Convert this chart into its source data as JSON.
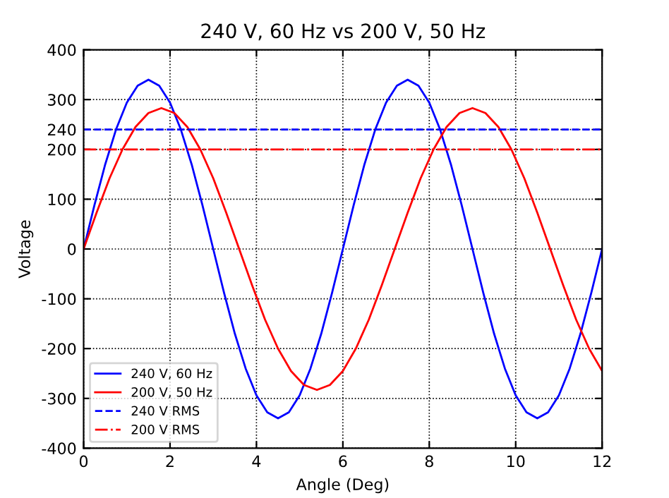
{
  "chart_data": {
    "type": "line",
    "title": "240 V, 60 Hz vs 200 V, 50 Hz",
    "xlabel": "Angle (Deg)",
    "ylabel": "Voltage",
    "series": [
      {
        "name": "240 V, 60 Hz",
        "color": "#0000ff",
        "x": [
          0,
          0.25,
          0.5,
          0.75,
          1,
          1.25,
          1.5,
          1.75,
          2,
          2.25,
          2.5,
          2.75,
          3,
          3.25,
          3.5,
          3.75,
          4,
          4.25,
          4.5,
          4.75,
          5,
          5.25,
          5.5,
          5.75,
          6,
          6.25,
          6.5,
          6.75,
          7,
          7.25,
          7.5,
          7.75,
          8,
          8.25,
          8.5,
          8.75,
          9,
          9.25,
          9.5,
          9.75,
          10,
          10.25,
          10.5,
          10.75,
          11,
          11.25,
          11.5,
          11.75,
          12
        ],
        "values": [
          0,
          88,
          170,
          240,
          294,
          328,
          340,
          328,
          294,
          240,
          170,
          88,
          0,
          -88,
          -170,
          -240,
          -294,
          -328,
          -340,
          -328,
          -294,
          -240,
          -170,
          -88,
          0,
          88,
          170,
          240,
          294,
          328,
          340,
          328,
          294,
          240,
          170,
          88,
          0,
          -88,
          -170,
          -240,
          -294,
          -328,
          -340,
          -328,
          -294,
          -240,
          -170,
          -88,
          0
        ]
      },
      {
        "name": "200 V, 50 Hz",
        "color": "#ff0000",
        "x": [
          0,
          0.3,
          0.6,
          0.9,
          1.2,
          1.5,
          1.8,
          2.1,
          2.4,
          2.7,
          3,
          3.3,
          3.6,
          3.9,
          4.2,
          4.5,
          4.8,
          5.1,
          5.4,
          5.7,
          6,
          6.3,
          6.6,
          6.9,
          7.2,
          7.5,
          7.8,
          8.1,
          8.4,
          8.7,
          9,
          9.3,
          9.6,
          9.9,
          10.2,
          10.5,
          10.8,
          11.1,
          11.4,
          11.7,
          12
        ],
        "values": [
          0,
          73,
          142,
          200,
          245,
          273,
          283,
          273,
          245,
          200,
          142,
          73,
          0,
          -73,
          -142,
          -200,
          -245,
          -273,
          -283,
          -273,
          -245,
          -200,
          -142,
          -73,
          0,
          73,
          142,
          200,
          245,
          273,
          283,
          273,
          245,
          200,
          142,
          73,
          0,
          -73,
          -142,
          -200,
          -245
        ]
      }
    ],
    "ref_lines": [
      {
        "axis": "y",
        "value": 240,
        "label": "240 V RMS",
        "color": "#0000ff",
        "line_style": "dashed"
      },
      {
        "axis": "y",
        "value": 200,
        "label": "200 V RMS",
        "color": "#ff0000",
        "line_style": "dashdot"
      }
    ],
    "xlim": [
      0,
      12
    ],
    "xticks": [
      0,
      2,
      4,
      6,
      8,
      10,
      12
    ],
    "ylim": [
      -400,
      400
    ],
    "yticks": [
      -400,
      -300,
      -200,
      -100,
      0,
      100,
      200,
      240,
      300,
      400
    ],
    "grid": true,
    "legend": "bottom left"
  }
}
